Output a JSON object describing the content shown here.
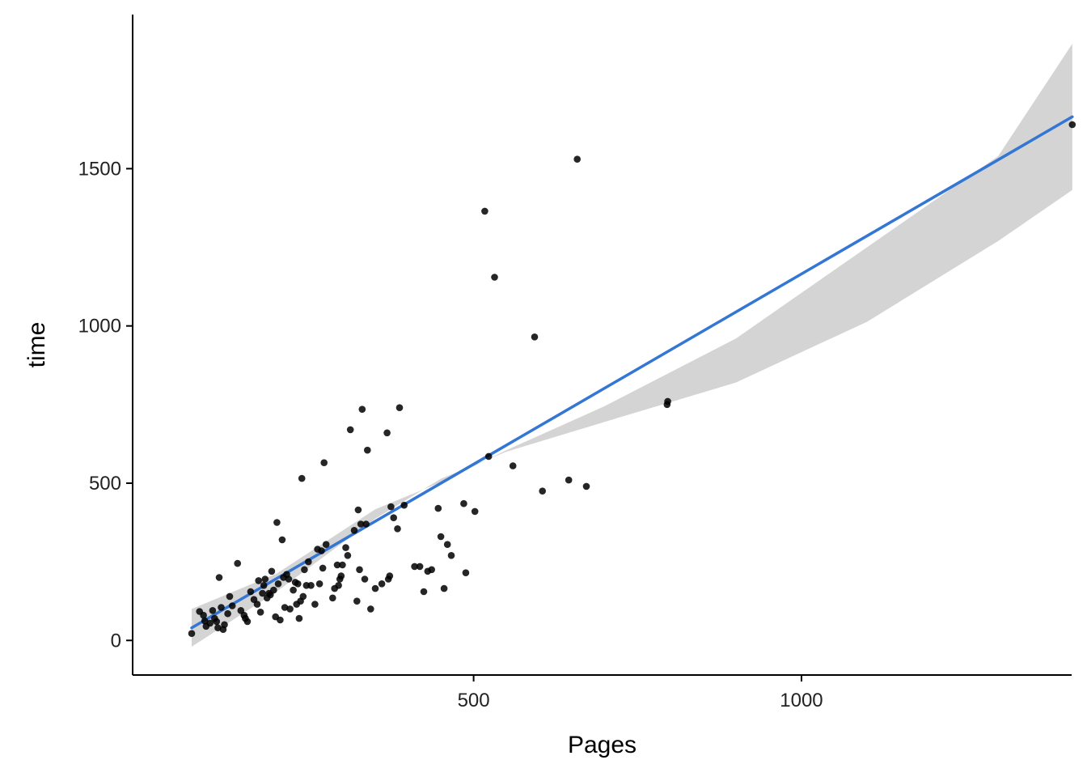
{
  "chart_data": {
    "type": "scatter",
    "title": "",
    "xlabel": "Pages",
    "ylabel": "time",
    "xlim": [
      -20,
      1412
    ],
    "ylim": [
      -110,
      1990
    ],
    "xticks": [
      500,
      1000
    ],
    "xtick_labels": [
      "500",
      "1000"
    ],
    "yticks": [
      0,
      500,
      1000,
      1500
    ],
    "ytick_labels": [
      "0",
      "500",
      "1000",
      "1500"
    ],
    "grid": false,
    "legend": "none",
    "points": [
      [
        70,
        22
      ],
      [
        82,
        92
      ],
      [
        88,
        80
      ],
      [
        90,
        62
      ],
      [
        92,
        45
      ],
      [
        98,
        55
      ],
      [
        102,
        95
      ],
      [
        105,
        70
      ],
      [
        108,
        60
      ],
      [
        110,
        40
      ],
      [
        112,
        200
      ],
      [
        115,
        105
      ],
      [
        118,
        35
      ],
      [
        120,
        50
      ],
      [
        125,
        85
      ],
      [
        128,
        140
      ],
      [
        132,
        110
      ],
      [
        140,
        245
      ],
      [
        145,
        95
      ],
      [
        150,
        80
      ],
      [
        152,
        70
      ],
      [
        155,
        60
      ],
      [
        160,
        155
      ],
      [
        165,
        130
      ],
      [
        170,
        115
      ],
      [
        172,
        190
      ],
      [
        175,
        90
      ],
      [
        178,
        150
      ],
      [
        180,
        175
      ],
      [
        182,
        195
      ],
      [
        185,
        135
      ],
      [
        188,
        150
      ],
      [
        190,
        145
      ],
      [
        192,
        220
      ],
      [
        195,
        160
      ],
      [
        198,
        75
      ],
      [
        200,
        375
      ],
      [
        202,
        180
      ],
      [
        205,
        65
      ],
      [
        208,
        320
      ],
      [
        210,
        200
      ],
      [
        212,
        105
      ],
      [
        215,
        210
      ],
      [
        218,
        195
      ],
      [
        220,
        100
      ],
      [
        225,
        160
      ],
      [
        228,
        185
      ],
      [
        230,
        115
      ],
      [
        232,
        180
      ],
      [
        234,
        70
      ],
      [
        236,
        125
      ],
      [
        238,
        515
      ],
      [
        240,
        140
      ],
      [
        242,
        225
      ],
      [
        245,
        175
      ],
      [
        248,
        250
      ],
      [
        252,
        175
      ],
      [
        258,
        115
      ],
      [
        262,
        290
      ],
      [
        265,
        180
      ],
      [
        268,
        285
      ],
      [
        270,
        230
      ],
      [
        272,
        565
      ],
      [
        275,
        305
      ],
      [
        285,
        135
      ],
      [
        288,
        165
      ],
      [
        292,
        240
      ],
      [
        294,
        175
      ],
      [
        296,
        195
      ],
      [
        298,
        205
      ],
      [
        300,
        240
      ],
      [
        305,
        295
      ],
      [
        308,
        270
      ],
      [
        312,
        670
      ],
      [
        318,
        350
      ],
      [
        322,
        125
      ],
      [
        324,
        415
      ],
      [
        326,
        225
      ],
      [
        328,
        370
      ],
      [
        330,
        735
      ],
      [
        334,
        195
      ],
      [
        336,
        370
      ],
      [
        338,
        605
      ],
      [
        343,
        100
      ],
      [
        350,
        165
      ],
      [
        360,
        180
      ],
      [
        368,
        660
      ],
      [
        370,
        195
      ],
      [
        372,
        205
      ],
      [
        374,
        425
      ],
      [
        378,
        390
      ],
      [
        384,
        355
      ],
      [
        387,
        740
      ],
      [
        394,
        430
      ],
      [
        410,
        235
      ],
      [
        418,
        235
      ],
      [
        424,
        155
      ],
      [
        430,
        220
      ],
      [
        436,
        225
      ],
      [
        446,
        420
      ],
      [
        450,
        330
      ],
      [
        455,
        165
      ],
      [
        460,
        305
      ],
      [
        466,
        270
      ],
      [
        485,
        435
      ],
      [
        488,
        215
      ],
      [
        502,
        410
      ],
      [
        517,
        1365
      ],
      [
        523,
        585
      ],
      [
        532,
        1155
      ],
      [
        560,
        555
      ],
      [
        593,
        965
      ],
      [
        605,
        475
      ],
      [
        645,
        510
      ],
      [
        658,
        1530
      ],
      [
        672,
        490
      ],
      [
        795,
        750
      ],
      [
        796,
        760
      ],
      [
        1413,
        1640
      ]
    ],
    "fit": {
      "method": "lm",
      "color": "#3376d4",
      "ci_color": "#d4d4d4",
      "line": [
        [
          70,
          40
        ],
        [
          1413,
          1665
        ]
      ],
      "ci_lower": [
        [
          70,
          -20
        ],
        [
          200,
          156
        ],
        [
          350,
          387
        ],
        [
          450,
          514
        ],
        [
          550,
          600
        ],
        [
          700,
          695
        ],
        [
          900,
          820
        ],
        [
          1100,
          1013
        ],
        [
          1300,
          1270
        ],
        [
          1413,
          1432
        ]
      ],
      "ci_upper": [
        [
          70,
          100
        ],
        [
          200,
          213
        ],
        [
          350,
          417
        ],
        [
          450,
          503
        ],
        [
          550,
          605
        ],
        [
          700,
          745
        ],
        [
          900,
          960
        ],
        [
          1100,
          1250
        ],
        [
          1300,
          1540
        ],
        [
          1413,
          1897
        ]
      ]
    },
    "point_color": "#000000"
  }
}
